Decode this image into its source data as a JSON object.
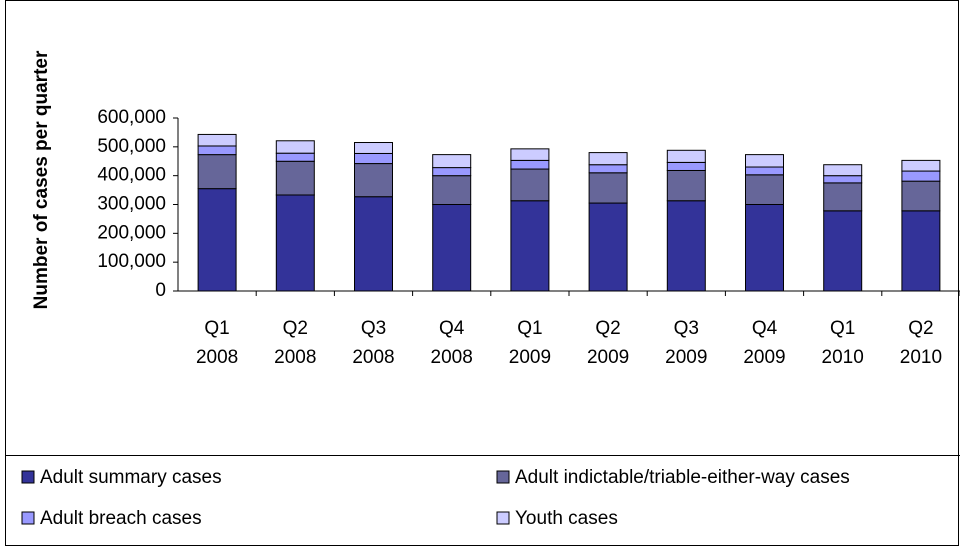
{
  "chart_data": {
    "type": "stacked_bar",
    "y_label": "Number of cases per quarter",
    "categories": [
      "Q1 2008",
      "Q2 2008",
      "Q3 2008",
      "Q4 2008",
      "Q1 2009",
      "Q2 2009",
      "Q3 2009",
      "Q4 2009",
      "Q1 2010",
      "Q2 2010"
    ],
    "series": [
      {
        "name": "Adult summary cases",
        "color": "#333399",
        "values": [
          355000,
          333000,
          327000,
          300000,
          313000,
          305000,
          313000,
          300000,
          278000,
          278000
        ]
      },
      {
        "name": "Adult indictable/triable-either-way cases",
        "color": "#666699",
        "values": [
          118000,
          117000,
          115000,
          100000,
          110000,
          105000,
          105000,
          103000,
          97000,
          103000
        ]
      },
      {
        "name": "Adult breach cases",
        "color": "#9999ff",
        "values": [
          30000,
          28000,
          35000,
          28000,
          30000,
          28000,
          28000,
          27000,
          25000,
          35000
        ]
      },
      {
        "name": "Youth cases",
        "color": "#ccccff",
        "values": [
          40000,
          43000,
          38000,
          45000,
          40000,
          42000,
          42000,
          43000,
          38000,
          37000
        ]
      }
    ],
    "ylim": [
      0,
      600000
    ],
    "yticks": [
      0,
      {
        "value": 100000,
        "label": "100,000"
      },
      {
        "value": 200000,
        "label": "200,000"
      },
      {
        "value": 300000,
        "label": "300,000"
      },
      {
        "value": 400000,
        "label": "400,000"
      },
      {
        "value": 500000,
        "label": "500,000"
      },
      {
        "value": 600000,
        "label": "600,000"
      }
    ],
    "grid": false
  }
}
